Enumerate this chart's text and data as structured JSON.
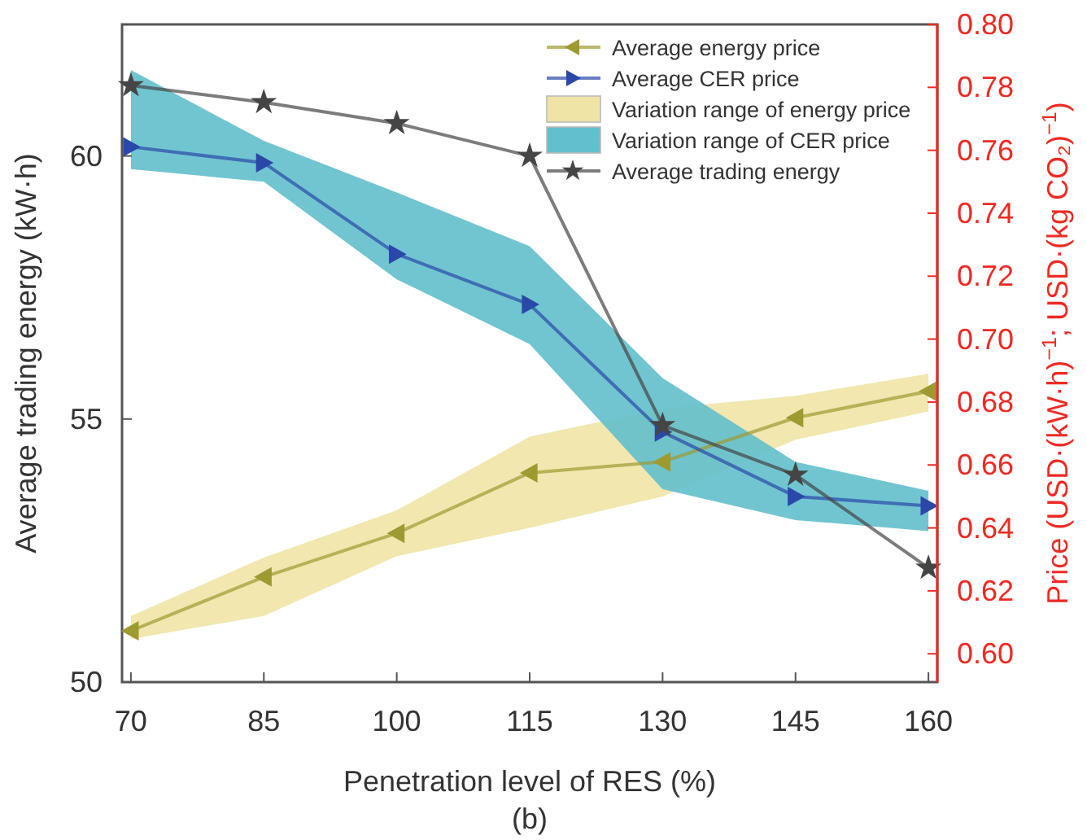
{
  "chart_data": {
    "type": "line",
    "xlabel": "Penetration level of RES (%)",
    "ylabel": "Average trading energy (kW·h)",
    "y2label": "Price (USD·(kW·h)$^{−1}$; USD·(kg CO₂)$^{−1}$)",
    "x": [
      70,
      85,
      100,
      115,
      130,
      145,
      160
    ],
    "xlim": [
      69,
      161
    ],
    "xticks": [
      70,
      85,
      100,
      115,
      130,
      145,
      160
    ],
    "ylim": [
      50,
      62.5
    ],
    "yticks": [
      50,
      55,
      60
    ],
    "y2lim": [
      0.591,
      0.8
    ],
    "y2ticks": [
      {
        "value": 0.6,
        "label": "0.60"
      },
      0.62,
      0.64,
      0.66,
      0.68,
      {
        "value": 0.7,
        "label": "0.70"
      },
      0.72,
      0.74,
      0.76,
      0.78,
      {
        "value": 0.8,
        "label": "0.80"
      }
    ],
    "series": [
      {
        "name": "Average energy price",
        "color": "#9e9a32",
        "axis": "y2",
        "marker": "triangle-left",
        "values": [
          0.6073,
          0.6244,
          0.6383,
          0.6575,
          0.661,
          0.675,
          0.6834
        ],
        "lower": [
          0.6047,
          0.612,
          0.631,
          0.64,
          0.65,
          0.668,
          0.677
        ],
        "upper": [
          0.612,
          0.6306,
          0.6456,
          0.669,
          0.678,
          0.682,
          0.689
        ]
      },
      {
        "name": "Average CER price",
        "color": "#2a48a8",
        "axis": "y2",
        "marker": "triangle-right",
        "values": [
          0.7611,
          0.756,
          0.727,
          0.711,
          0.6705,
          0.65,
          0.647
        ],
        "lower": [
          0.754,
          0.75,
          0.719,
          0.6984,
          0.6523,
          0.6425,
          0.639
        ],
        "upper": [
          0.7855,
          0.763,
          0.7466,
          0.7295,
          0.6876,
          0.661,
          0.6518
        ]
      },
      {
        "name": "Average trading energy",
        "color": "#454545",
        "marker": "star",
        "values": [
          61.34,
          61.02,
          60.62,
          60.0,
          54.88,
          53.94,
          52.17
        ]
      }
    ],
    "legend": "top right",
    "annotations": [
      "Variation range of energy price",
      "Variation range of CER price",
      "(b)"
    ]
  }
}
